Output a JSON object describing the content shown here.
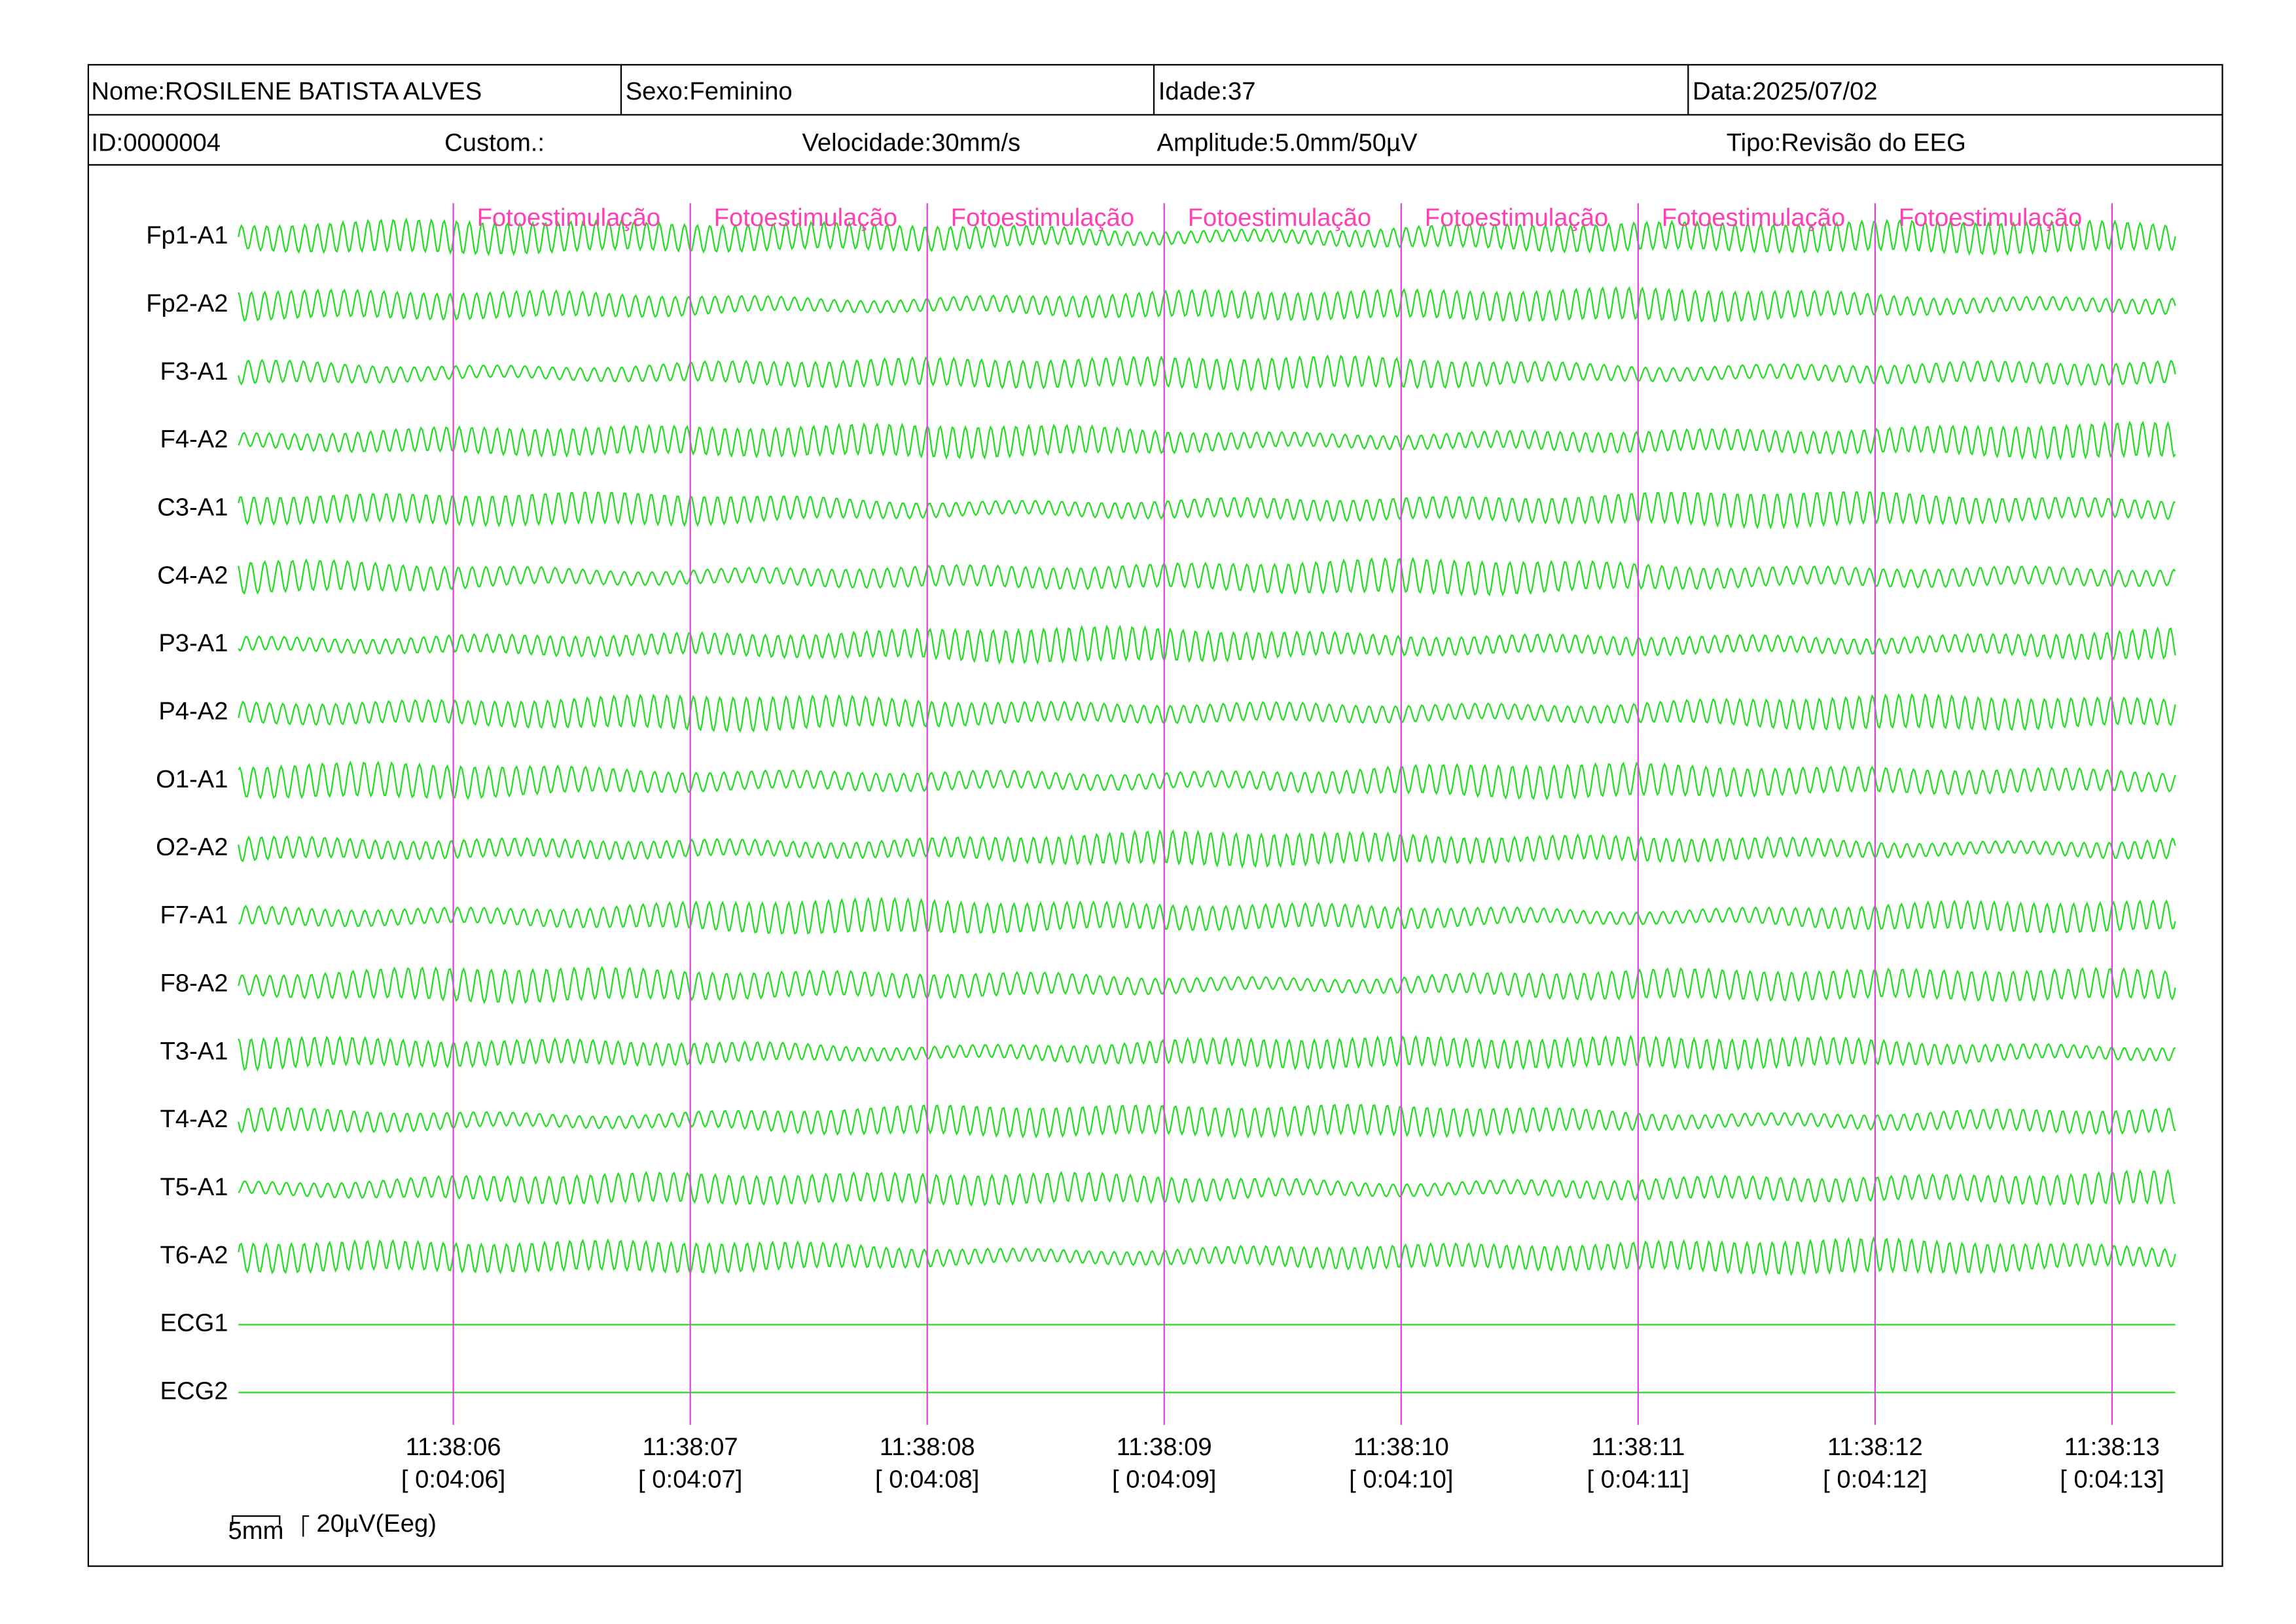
{
  "header": {
    "row1": [
      "Nome:ROSILENE BATISTA ALVES",
      "Sexo:Feminino",
      "Idade:37",
      "Data:2025/07/02"
    ],
    "row2": [
      "ID:0000004",
      "Custom.:",
      "Velocidade:30mm/s",
      "Amplitude:5.0mm/50µV",
      "Tipo:Revisão do EEG"
    ]
  },
  "channels": [
    "Fp1-A1",
    "Fp2-A2",
    "F3-A1",
    "F4-A2",
    "C3-A1",
    "C4-A2",
    "P3-A1",
    "P4-A2",
    "O1-A1",
    "O2-A2",
    "F7-A1",
    "F8-A2",
    "T3-A1",
    "T4-A2",
    "T5-A1",
    "T6-A2",
    "ECG1",
    "ECG2"
  ],
  "markers": [
    "Fotoestimulação",
    "Fotoestimulação",
    "Fotoestimulação",
    "Fotoestimulação",
    "Fotoestimulação",
    "Fotoestimulação",
    "Fotoestimulação"
  ],
  "times": [
    {
      "clock": "11:38:06",
      "elapsed": "[ 0:04:06]"
    },
    {
      "clock": "11:38:07",
      "elapsed": "[ 0:04:07]"
    },
    {
      "clock": "11:38:08",
      "elapsed": "[ 0:04:08]"
    },
    {
      "clock": "11:38:09",
      "elapsed": "[ 0:04:09]"
    },
    {
      "clock": "11:38:10",
      "elapsed": "[ 0:04:10]"
    },
    {
      "clock": "11:38:11",
      "elapsed": "[ 0:04:11]"
    },
    {
      "clock": "11:38:12",
      "elapsed": "[ 0:04:12]"
    },
    {
      "clock": "11:38:13",
      "elapsed": "[ 0:04:13]"
    }
  ],
  "scale": {
    "time": "5mm",
    "amplitude": "20µV(Eeg)"
  }
}
